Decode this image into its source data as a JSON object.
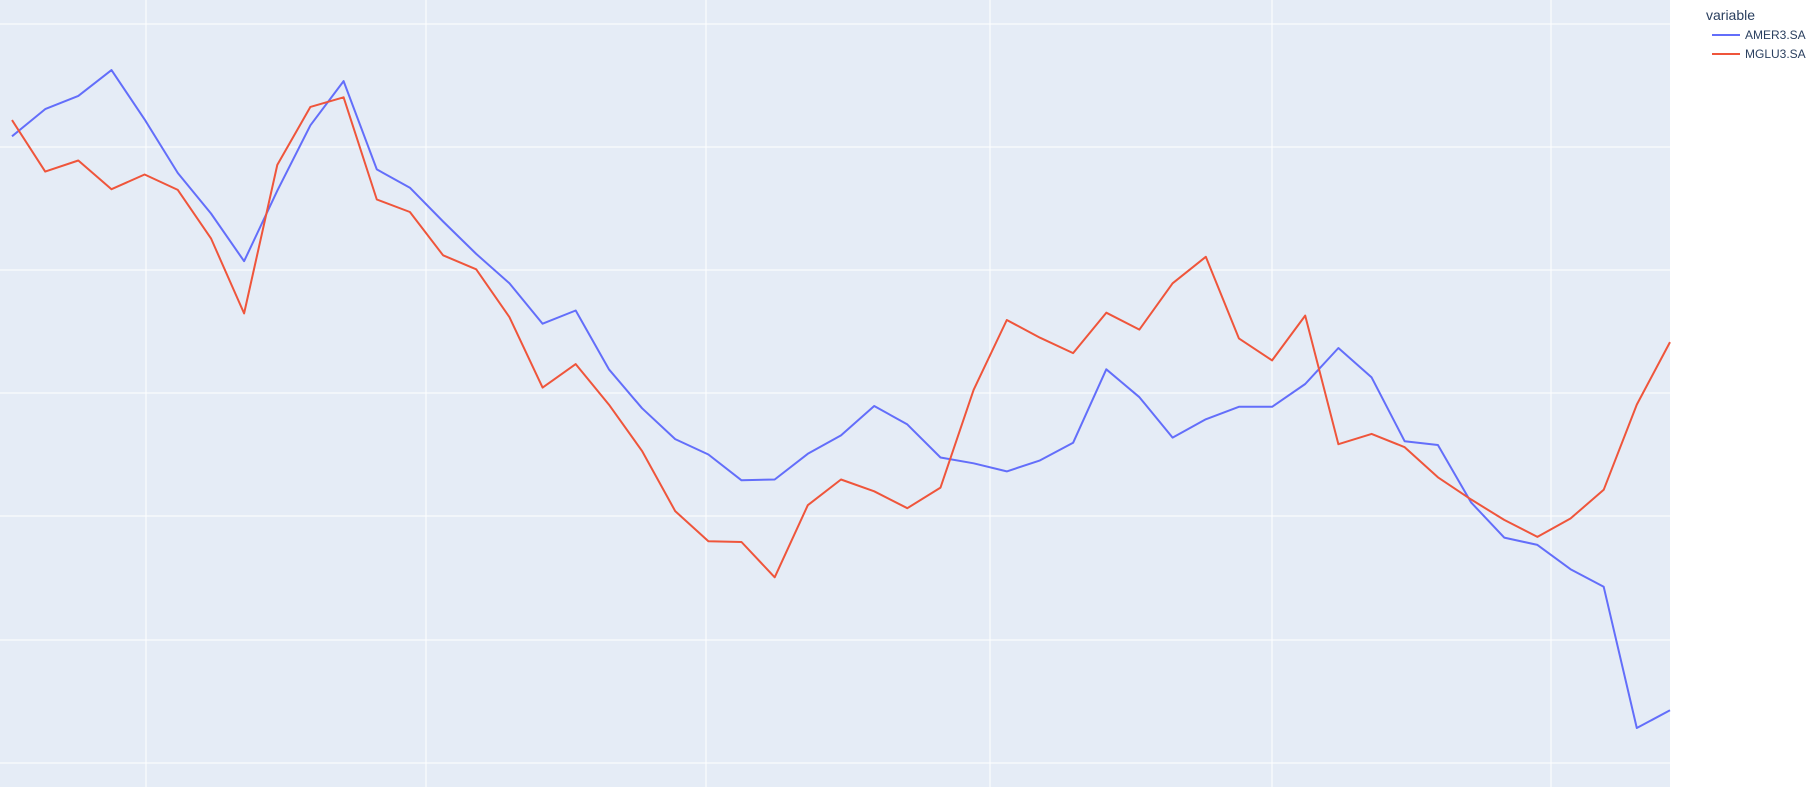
{
  "chart_data": {
    "type": "line",
    "title": "",
    "xlabel": "",
    "ylabel": "",
    "grid": true,
    "legend": {
      "title": "variable",
      "placement": "top-right",
      "entries": [
        "AMER3.SA",
        "MGLU3.SA"
      ]
    },
    "x": [
      0,
      5,
      10,
      15,
      20,
      25,
      30,
      35,
      40,
      45,
      50,
      55,
      60,
      65,
      70,
      75,
      80,
      85,
      90,
      95,
      100,
      105,
      110,
      115,
      120,
      125,
      130,
      135,
      140,
      145,
      150,
      155,
      160,
      165,
      170,
      175,
      180,
      185,
      190,
      195,
      200,
      205,
      210,
      215,
      220,
      225,
      230,
      235,
      240,
      245,
      250
    ],
    "xlim": [
      0,
      250
    ],
    "ylim": [
      0,
      100
    ],
    "series": [
      {
        "name": "AMER3.SA",
        "color": "#636EFA",
        "values": [
          83.5,
          87.2,
          89.0,
          92.5,
          85.8,
          78.5,
          73.0,
          66.5,
          76.1,
          85.0,
          91.0,
          79.0,
          76.5,
          71.9,
          67.5,
          63.5,
          58.0,
          59.8,
          51.8,
          46.5,
          42.3,
          40.2,
          36.7,
          36.8,
          40.3,
          42.8,
          46.8,
          44.3,
          39.8,
          39.0,
          37.9,
          39.4,
          41.8,
          51.8,
          48.0,
          42.5,
          45.0,
          46.7,
          46.7,
          49.8,
          54.7,
          50.7,
          42.0,
          41.5,
          33.7,
          28.9,
          27.9,
          24.6,
          22.2,
          3.0,
          5.4
        ]
      },
      {
        "name": "MGLU3.SA",
        "color": "#EF553B",
        "values": [
          85.7,
          78.7,
          80.2,
          76.3,
          78.3,
          76.2,
          69.6,
          59.4,
          79.6,
          87.5,
          88.8,
          74.9,
          73.2,
          67.3,
          65.4,
          58.9,
          49.3,
          52.5,
          47.0,
          40.7,
          32.5,
          28.4,
          28.3,
          23.5,
          33.3,
          36.8,
          35.2,
          32.9,
          35.7,
          49.0,
          58.5,
          56.1,
          54.0,
          59.5,
          57.2,
          63.5,
          67.1,
          56.0,
          53.0,
          59.1,
          41.6,
          43.0,
          41.2,
          37.1,
          34.1,
          31.3,
          29.0,
          31.5,
          35.4,
          47.0,
          55.5
        ]
      }
    ]
  }
}
